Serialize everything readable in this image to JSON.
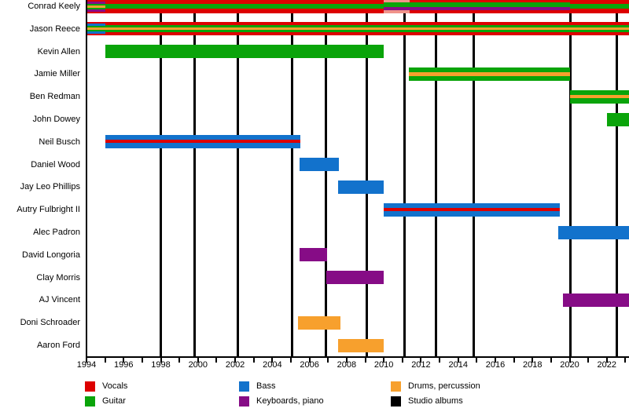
{
  "chart_data": {
    "type": "timeline",
    "description": "Band members timeline (Gantt-style) with studio album release markers",
    "x_axis": {
      "min": 1994,
      "max": 2023.2,
      "tick_step": 1,
      "label_step": 2,
      "tick_labels": [
        "1994",
        "1996",
        "1998",
        "2000",
        "2002",
        "2004",
        "2006",
        "2008",
        "2010",
        "2012",
        "2014",
        "2016",
        "2018",
        "2020",
        "2022"
      ]
    },
    "colors": {
      "vocals": "#dd0000",
      "guitar": "#0aa40a",
      "bass": "#1272cc",
      "keyboards": "#860c86",
      "drums": "#f7a02d",
      "albums": "#000000",
      "vocals_light": "#f0938a"
    },
    "albums": [
      1998.0,
      1999.8,
      2002.15,
      2005.05,
      2006.9,
      2009.1,
      2011.1,
      2012.8,
      2014.85,
      2020.05,
      2022.55
    ],
    "members": [
      {
        "name": "Conrad Keely",
        "segments": [
          {
            "start": 1994.05,
            "end": 1995.0,
            "stripes": [
              [
                "vocals",
                2
              ],
              [
                "keyboards",
                3
              ],
              [
                "guitar",
                2
              ],
              [
                "drums",
                3
              ],
              [
                "guitar",
                2
              ],
              [
                "keyboards",
                3
              ],
              [
                "vocals",
                2
              ]
            ]
          },
          {
            "start": 1995.0,
            "end": 2010.0,
            "stripes": [
              [
                "vocals",
                5
              ],
              [
                "guitar",
                6
              ],
              [
                "vocals",
                6
              ]
            ]
          },
          {
            "start": 2010.0,
            "end": 2011.4,
            "stripes": [
              [
                "vocals_light",
                3
              ],
              [
                "guitar",
                6
              ],
              [
                "keyboards",
                4
              ],
              [
                "vocals_light",
                4
              ]
            ]
          },
          {
            "start": 2011.4,
            "end": 2020.0,
            "stripes": [
              [
                "vocals",
                3
              ],
              [
                "guitar",
                6
              ],
              [
                "keyboards",
                4
              ],
              [
                "vocals",
                4
              ]
            ]
          },
          {
            "start": 2020.0,
            "end": 2023.2,
            "stripes": [
              [
                "vocals",
                5
              ],
              [
                "guitar",
                6
              ],
              [
                "vocals",
                6
              ]
            ]
          }
        ]
      },
      {
        "name": "Jason Reece",
        "segments": [
          {
            "start": 1994.05,
            "end": 1995.0,
            "stripes": [
              [
                "vocals",
                2
              ],
              [
                "bass",
                3
              ],
              [
                "guitar",
                2
              ],
              [
                "drums",
                3
              ],
              [
                "guitar",
                2
              ],
              [
                "bass",
                3
              ],
              [
                "vocals",
                2
              ]
            ]
          },
          {
            "start": 1995.0,
            "end": 2023.2,
            "stripes": [
              [
                "vocals",
                4
              ],
              [
                "guitar",
                3
              ],
              [
                "drums",
                3
              ],
              [
                "guitar",
                3
              ],
              [
                "vocals",
                4
              ]
            ]
          }
        ]
      },
      {
        "name": "Kevin Allen",
        "segments": [
          {
            "start": 1995.0,
            "end": 2010.0,
            "stripes": [
              [
                "guitar",
                1
              ]
            ]
          }
        ]
      },
      {
        "name": "Jamie Miller",
        "segments": [
          {
            "start": 2011.35,
            "end": 2020.0,
            "stripes": [
              [
                "guitar",
                6
              ],
              [
                "drums",
                4
              ],
              [
                "guitar",
                6
              ]
            ]
          }
        ]
      },
      {
        "name": "Ben Redman",
        "segments": [
          {
            "start": 2020.0,
            "end": 2023.2,
            "stripes": [
              [
                "guitar",
                6
              ],
              [
                "drums",
                4
              ],
              [
                "guitar",
                6
              ]
            ]
          }
        ]
      },
      {
        "name": "John Dowey",
        "segments": [
          {
            "start": 2022.0,
            "end": 2023.2,
            "stripes": [
              [
                "guitar",
                1
              ]
            ]
          }
        ]
      },
      {
        "name": "Neil Busch",
        "segments": [
          {
            "start": 1995.0,
            "end": 2005.5,
            "stripes": [
              [
                "bass",
                6
              ],
              [
                "vocals",
                4
              ],
              [
                "bass",
                7
              ]
            ]
          }
        ]
      },
      {
        "name": "Daniel Wood",
        "segments": [
          {
            "start": 2005.45,
            "end": 2007.6,
            "stripes": [
              [
                "bass",
                1
              ]
            ]
          }
        ]
      },
      {
        "name": "Jay Leo Phillips",
        "segments": [
          {
            "start": 2007.55,
            "end": 2010.0,
            "stripes": [
              [
                "bass",
                1
              ]
            ]
          }
        ]
      },
      {
        "name": "Autry Fulbright II",
        "segments": [
          {
            "start": 2010.0,
            "end": 2019.45,
            "stripes": [
              [
                "bass",
                6
              ],
              [
                "vocals",
                4
              ],
              [
                "bass",
                7
              ]
            ]
          }
        ]
      },
      {
        "name": "Alec Padron",
        "segments": [
          {
            "start": 2019.4,
            "end": 2023.2,
            "stripes": [
              [
                "bass",
                1
              ]
            ]
          }
        ]
      },
      {
        "name": "David Longoria",
        "segments": [
          {
            "start": 2005.45,
            "end": 2006.95,
            "stripes": [
              [
                "keyboards",
                1
              ]
            ]
          }
        ]
      },
      {
        "name": "Clay Morris",
        "segments": [
          {
            "start": 2006.9,
            "end": 2010.0,
            "stripes": [
              [
                "keyboards",
                1
              ]
            ]
          }
        ]
      },
      {
        "name": "AJ Vincent",
        "segments": [
          {
            "start": 2019.65,
            "end": 2023.2,
            "stripes": [
              [
                "keyboards",
                1
              ]
            ]
          }
        ]
      },
      {
        "name": "Doni Schroader",
        "segments": [
          {
            "start": 2005.4,
            "end": 2007.65,
            "stripes": [
              [
                "drums",
                1
              ]
            ]
          }
        ]
      },
      {
        "name": "Aaron Ford",
        "segments": [
          {
            "start": 2007.55,
            "end": 2010.0,
            "stripes": [
              [
                "drums",
                1
              ]
            ]
          }
        ]
      }
    ],
    "legend": [
      {
        "label": "Vocals",
        "color": "vocals"
      },
      {
        "label": "Guitar",
        "color": "guitar"
      },
      {
        "label": "Bass",
        "color": "bass"
      },
      {
        "label": "Keyboards, piano",
        "color": "keyboards"
      },
      {
        "label": "Drums, percussion",
        "color": "drums"
      },
      {
        "label": "Studio albums",
        "color": "albums"
      }
    ]
  }
}
